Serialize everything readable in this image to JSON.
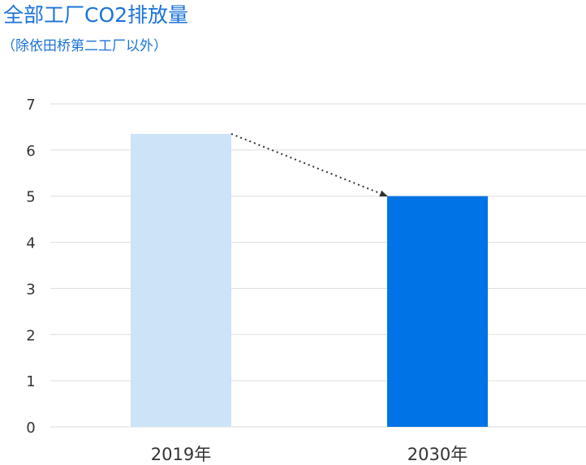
{
  "chart_data": {
    "type": "bar",
    "title": "全部工厂CO2排放量",
    "subtitle": "（除依田桥第二工厂以外）",
    "categories": [
      "2019年",
      "2030年"
    ],
    "values": [
      6.35,
      5.0
    ],
    "bar_colors": [
      "#cde3f8",
      "#0073e6"
    ],
    "ylim": [
      0,
      7
    ],
    "yticks": [
      "0",
      "1",
      "2",
      "3",
      "4",
      "5",
      "6",
      "7"
    ],
    "grid": true,
    "annotations": [
      {
        "type": "dotted-arrow",
        "from_category": "2019年",
        "to_category": "2030年"
      }
    ]
  },
  "colors": {
    "title": "#1a73d8",
    "grid": "#dddddd",
    "text": "#333333",
    "arrow": "#333333"
  }
}
